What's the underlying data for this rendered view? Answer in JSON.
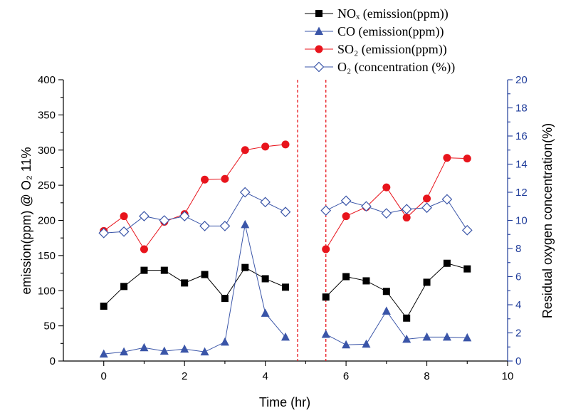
{
  "chart_data": {
    "type": "line",
    "xlabel": "Time (hr)",
    "ylabel_left": "emission(ppm) @ O₂ 11%",
    "ylabel_right": "Residual oxygen concentration(%)",
    "xlim": [
      -1,
      10
    ],
    "ylim_left": [
      0,
      400
    ],
    "ylim_right": [
      0,
      20
    ],
    "x_ticks": [
      0,
      2,
      4,
      6,
      8,
      10
    ],
    "y_left_ticks": [
      0,
      50,
      100,
      150,
      200,
      250,
      300,
      350,
      400
    ],
    "y_right_ticks": [
      0,
      2,
      4,
      6,
      8,
      10,
      12,
      14,
      16,
      18,
      20
    ],
    "grid": false,
    "legend_position": "top-right",
    "colors": {
      "nox": "#000000",
      "co": "#3a55a8",
      "so2": "#e8141c",
      "o2": "#3a55a8",
      "divider": "#e8141c",
      "right_axis": "#1f3c9a"
    },
    "vertical_lines": [
      4.8,
      5.5
    ],
    "series": [
      {
        "name": "NOₓ (emission(ppm))",
        "axis": "left",
        "marker": "square",
        "segments": [
          {
            "x": [
              0,
              0.5,
              1,
              1.5,
              2,
              2.5,
              3,
              3.5,
              4,
              4.5
            ],
            "y": [
              78,
              106,
              129,
              129,
              111,
              123,
              89,
              133,
              117,
              105
            ]
          },
          {
            "x": [
              5.5,
              6,
              6.5,
              7,
              7.5,
              8,
              8.5,
              9
            ],
            "y": [
              91,
              120,
              114,
              99,
              61,
              112,
              139,
              131
            ]
          }
        ]
      },
      {
        "name": "CO (emission(ppm))",
        "axis": "left",
        "marker": "triangle",
        "segments": [
          {
            "x": [
              0,
              0.5,
              1,
              1.5,
              2,
              2.5,
              3,
              3.5,
              4,
              4.5
            ],
            "y": [
              10,
              13,
              19,
              14,
              17,
              13,
              27,
              194,
              68,
              34
            ]
          },
          {
            "x": [
              5.5,
              6,
              6.5,
              7,
              7.5,
              8,
              8.5,
              9
            ],
            "y": [
              38,
              23,
              24,
              71,
              31,
              34,
              34,
              33
            ]
          }
        ]
      },
      {
        "name": "SO₂ (emission(ppm))",
        "axis": "left",
        "marker": "circle",
        "segments": [
          {
            "x": [
              0,
              0.5,
              1,
              1.5,
              2,
              2.5,
              3,
              3.5,
              4,
              4.5
            ],
            "y": [
              185,
              206,
              159,
              198,
              209,
              258,
              259,
              300,
              305,
              308
            ]
          },
          {
            "x": [
              5.5,
              6,
              6.5,
              7,
              7.5,
              8,
              8.5,
              9
            ],
            "y": [
              159,
              206,
              219,
              247,
              204,
              231,
              289,
              288
            ]
          }
        ]
      },
      {
        "name": "O₂ (concentration (%))",
        "axis": "right",
        "marker": "diamond-open",
        "segments": [
          {
            "x": [
              0,
              0.5,
              1,
              1.5,
              2,
              2.5,
              3,
              3.5,
              4,
              4.5
            ],
            "y": [
              9.1,
              9.2,
              10.3,
              10.0,
              10.3,
              9.6,
              9.6,
              12.0,
              11.3,
              10.6
            ]
          },
          {
            "x": [
              5.5,
              6,
              6.5,
              7,
              7.5,
              8,
              8.5,
              9
            ],
            "y": [
              10.7,
              11.4,
              11.0,
              10.5,
              10.8,
              10.9,
              11.5,
              9.3
            ]
          }
        ]
      }
    ]
  }
}
